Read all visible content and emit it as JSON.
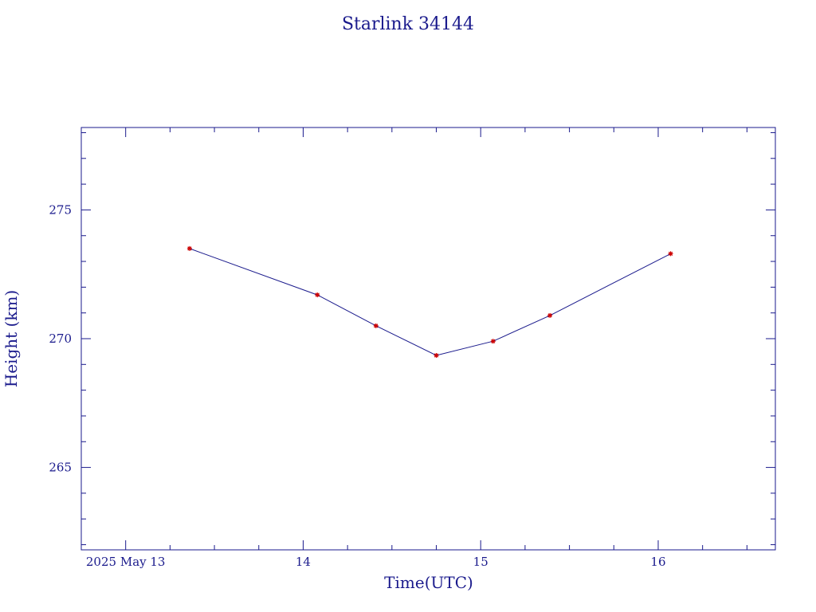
{
  "chart_data": {
    "type": "line",
    "title": "Starlink 34144",
    "xlabel": "Time(UTC)",
    "ylabel": "Height (km)",
    "xlim": [
      12.75,
      16.66
    ],
    "ylim": [
      261.8,
      278.2
    ],
    "x_tick_values": [
      13,
      14,
      15,
      16
    ],
    "x_tick_labels": [
      "2025 May 13",
      "14",
      "15",
      "16"
    ],
    "y_tick_values": [
      265,
      270,
      275
    ],
    "y_tick_labels": [
      "265",
      "270",
      "275"
    ],
    "grid": false,
    "legend": "none",
    "colors": {
      "axis": "#1a1a8c",
      "line": "#1a1a8c",
      "marker": "#cc0000"
    },
    "series": [
      {
        "x": [
          13.36,
          14.08,
          14.41,
          14.75,
          15.07,
          15.39,
          16.07
        ],
        "y": [
          273.5,
          271.7,
          270.5,
          269.35,
          269.9,
          270.9,
          273.3
        ]
      }
    ]
  }
}
